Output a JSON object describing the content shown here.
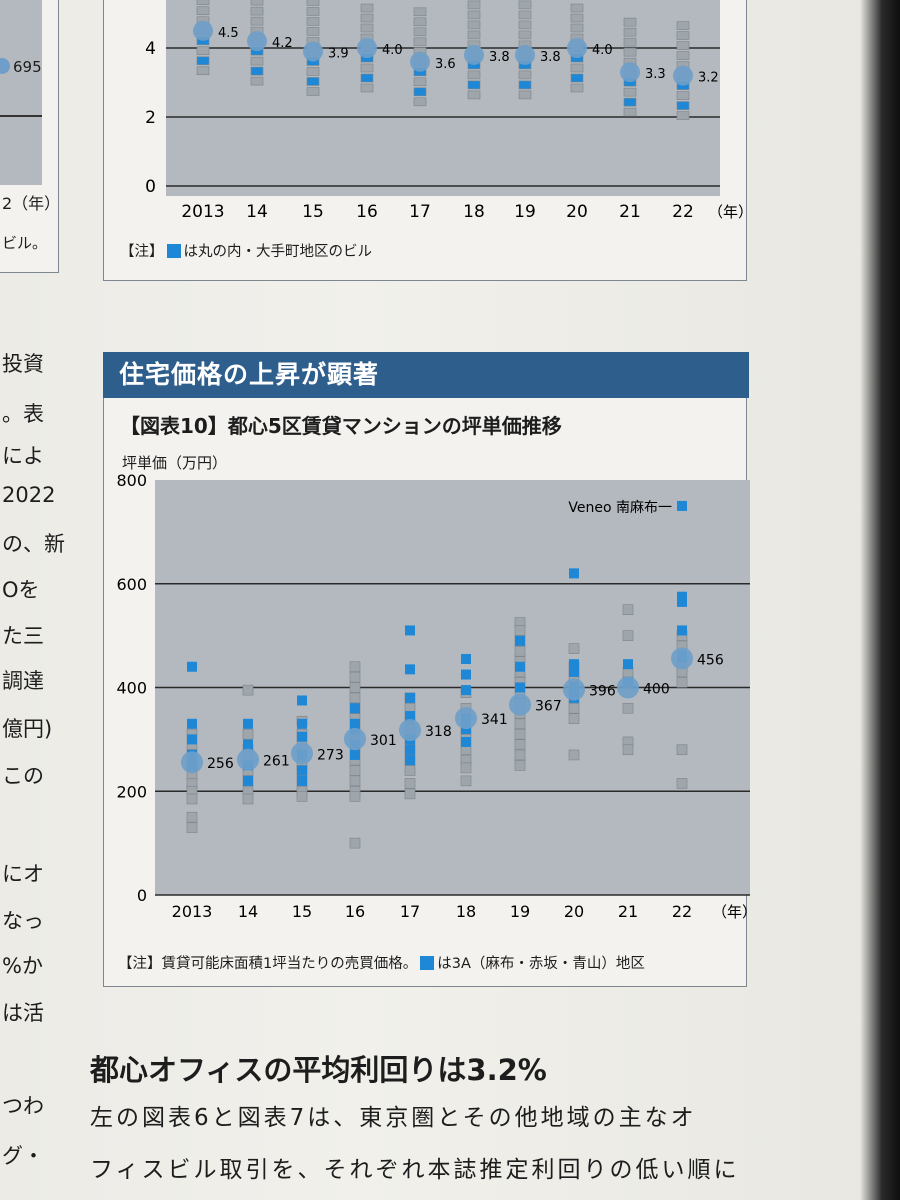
{
  "top_chart": {
    "chart_data": {
      "type": "scatter",
      "x": [
        "2013",
        "14",
        "15",
        "16",
        "17",
        "18",
        "19",
        "20",
        "21",
        "22"
      ],
      "x_suffix": "（年）",
      "y_ticks": [
        "0",
        "2",
        "4"
      ],
      "ylim": [
        0,
        5
      ],
      "averages": [
        4.5,
        4.2,
        3.9,
        4.0,
        3.6,
        3.8,
        3.8,
        4.0,
        3.3,
        3.2
      ],
      "average_labels": [
        "4.5",
        "4.2",
        "3.9",
        "4.0",
        "3.6",
        "3.8",
        "3.8",
        "4.0",
        "3.3",
        "3.2"
      ]
    },
    "note_prefix": "【注】",
    "note_suffix": "は丸の内・大手町地区のビル"
  },
  "left_fragments": {
    "value_695": "695",
    "year_suffix": "2（年）",
    "bldg": "ビル。"
  },
  "left_text_column": [
    "投資",
    "。表",
    "によ",
    "2022",
    "の、新",
    "Oを",
    "た三",
    "調達",
    "億円)",
    "この",
    "にオ",
    "なっ",
    "%か",
    "は活",
    "つわ",
    "グ・"
  ],
  "section_band": "住宅価格の上昇が顕著",
  "figure10": {
    "title": "【図表10】都心5区賃貸マンションの坪単価推移",
    "unit_label": "坪単価（万円）",
    "annotation": "Veneo 南麻布一",
    "note_prefix": "【注】賃貸可能床面積1坪当たりの売買価格。",
    "note_suffix": "は3A（麻布・赤坂・青山）地区",
    "chart_data": {
      "type": "scatter",
      "title": "【図表10】都心5区賃貸マンションの坪単価推移",
      "ylabel": "坪単価（万円）",
      "x": [
        "2013",
        "14",
        "15",
        "16",
        "17",
        "18",
        "19",
        "20",
        "21",
        "22"
      ],
      "x_suffix": "（年）",
      "y_ticks": [
        "0",
        "200",
        "400",
        "600",
        "800"
      ],
      "ylim": [
        0,
        800
      ],
      "grid": true,
      "average_series": {
        "name": "平均",
        "values": [
          256,
          261,
          273,
          301,
          318,
          341,
          367,
          396,
          400,
          456
        ],
        "labels": [
          "256",
          "261",
          "273",
          "301",
          "318",
          "341",
          "367",
          "396",
          "400",
          "456"
        ]
      },
      "points_3A": [
        [
          440,
          330,
          300,
          270,
          250
        ],
        [
          330,
          290,
          250,
          220
        ],
        [
          375,
          330,
          305,
          270,
          240,
          220
        ],
        [
          360,
          330,
          320,
          290,
          270
        ],
        [
          510,
          435,
          380,
          345,
          300,
          280,
          260
        ],
        [
          455,
          425,
          395,
          340,
          320,
          295
        ],
        [
          490,
          440,
          400
        ],
        [
          620,
          445,
          430,
          400,
          380
        ],
        [
          445,
          410
        ],
        [
          750,
          575,
          565,
          510,
          460
        ]
      ],
      "points_other": [
        [
          310,
          290,
          270,
          250,
          230,
          215,
          200,
          185,
          150,
          130
        ],
        [
          395,
          310,
          280,
          270,
          240,
          220,
          200,
          185
        ],
        [
          335,
          310,
          290,
          250,
          240,
          220,
          200,
          190
        ],
        [
          440,
          420,
          400,
          380,
          360,
          340,
          320,
          300,
          280,
          260,
          240,
          220,
          200,
          190,
          100
        ],
        [
          380,
          360,
          340,
          320,
          300,
          280,
          260,
          240,
          215,
          195
        ],
        [
          390,
          360,
          320,
          300,
          280,
          260,
          245,
          220
        ],
        [
          525,
          510,
          490,
          470,
          450,
          430,
          410,
          390,
          370,
          350,
          330,
          310,
          290,
          270,
          250
        ],
        [
          475,
          440,
          420,
          380,
          360,
          340,
          270
        ],
        [
          550,
          500,
          430,
          410,
          360,
          295,
          280
        ],
        [
          500,
          480,
          440,
          430,
          410,
          280,
          215
        ]
      ],
      "legend": "3A（麻布・赤坂・青山）地区"
    }
  },
  "heading": "都心オフィスの平均利回りは3.2%",
  "body_lines": [
    "左の図表6と図表7は、東京圏とその他地域の主なオ",
    "フィスビル取引を、それぞれ本誌推定利回りの低い順に"
  ],
  "colors": {
    "accent_blue": "#1e88d6",
    "band_blue": "#2e5f8c",
    "plot_bg": "#b3b9be",
    "marker_gray": "#9ea5ab",
    "circle_blue": "#6e9ec9"
  }
}
